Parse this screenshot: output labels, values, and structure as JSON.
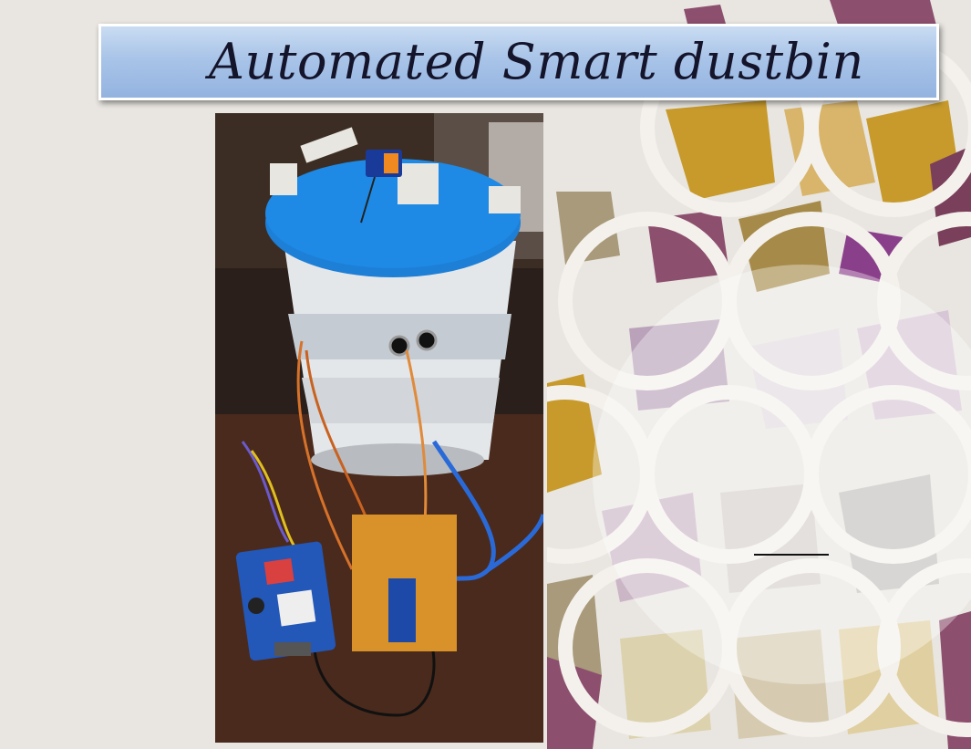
{
  "slide": {
    "title": "Automated Smart dustbin",
    "colors": {
      "background": "#e9e6e1",
      "banner_top": "#c9dcf2",
      "banner_bottom": "#93b3e0",
      "title_text": "#14142b"
    },
    "photo": {
      "icon": "dustbin-prototype-photo"
    }
  }
}
